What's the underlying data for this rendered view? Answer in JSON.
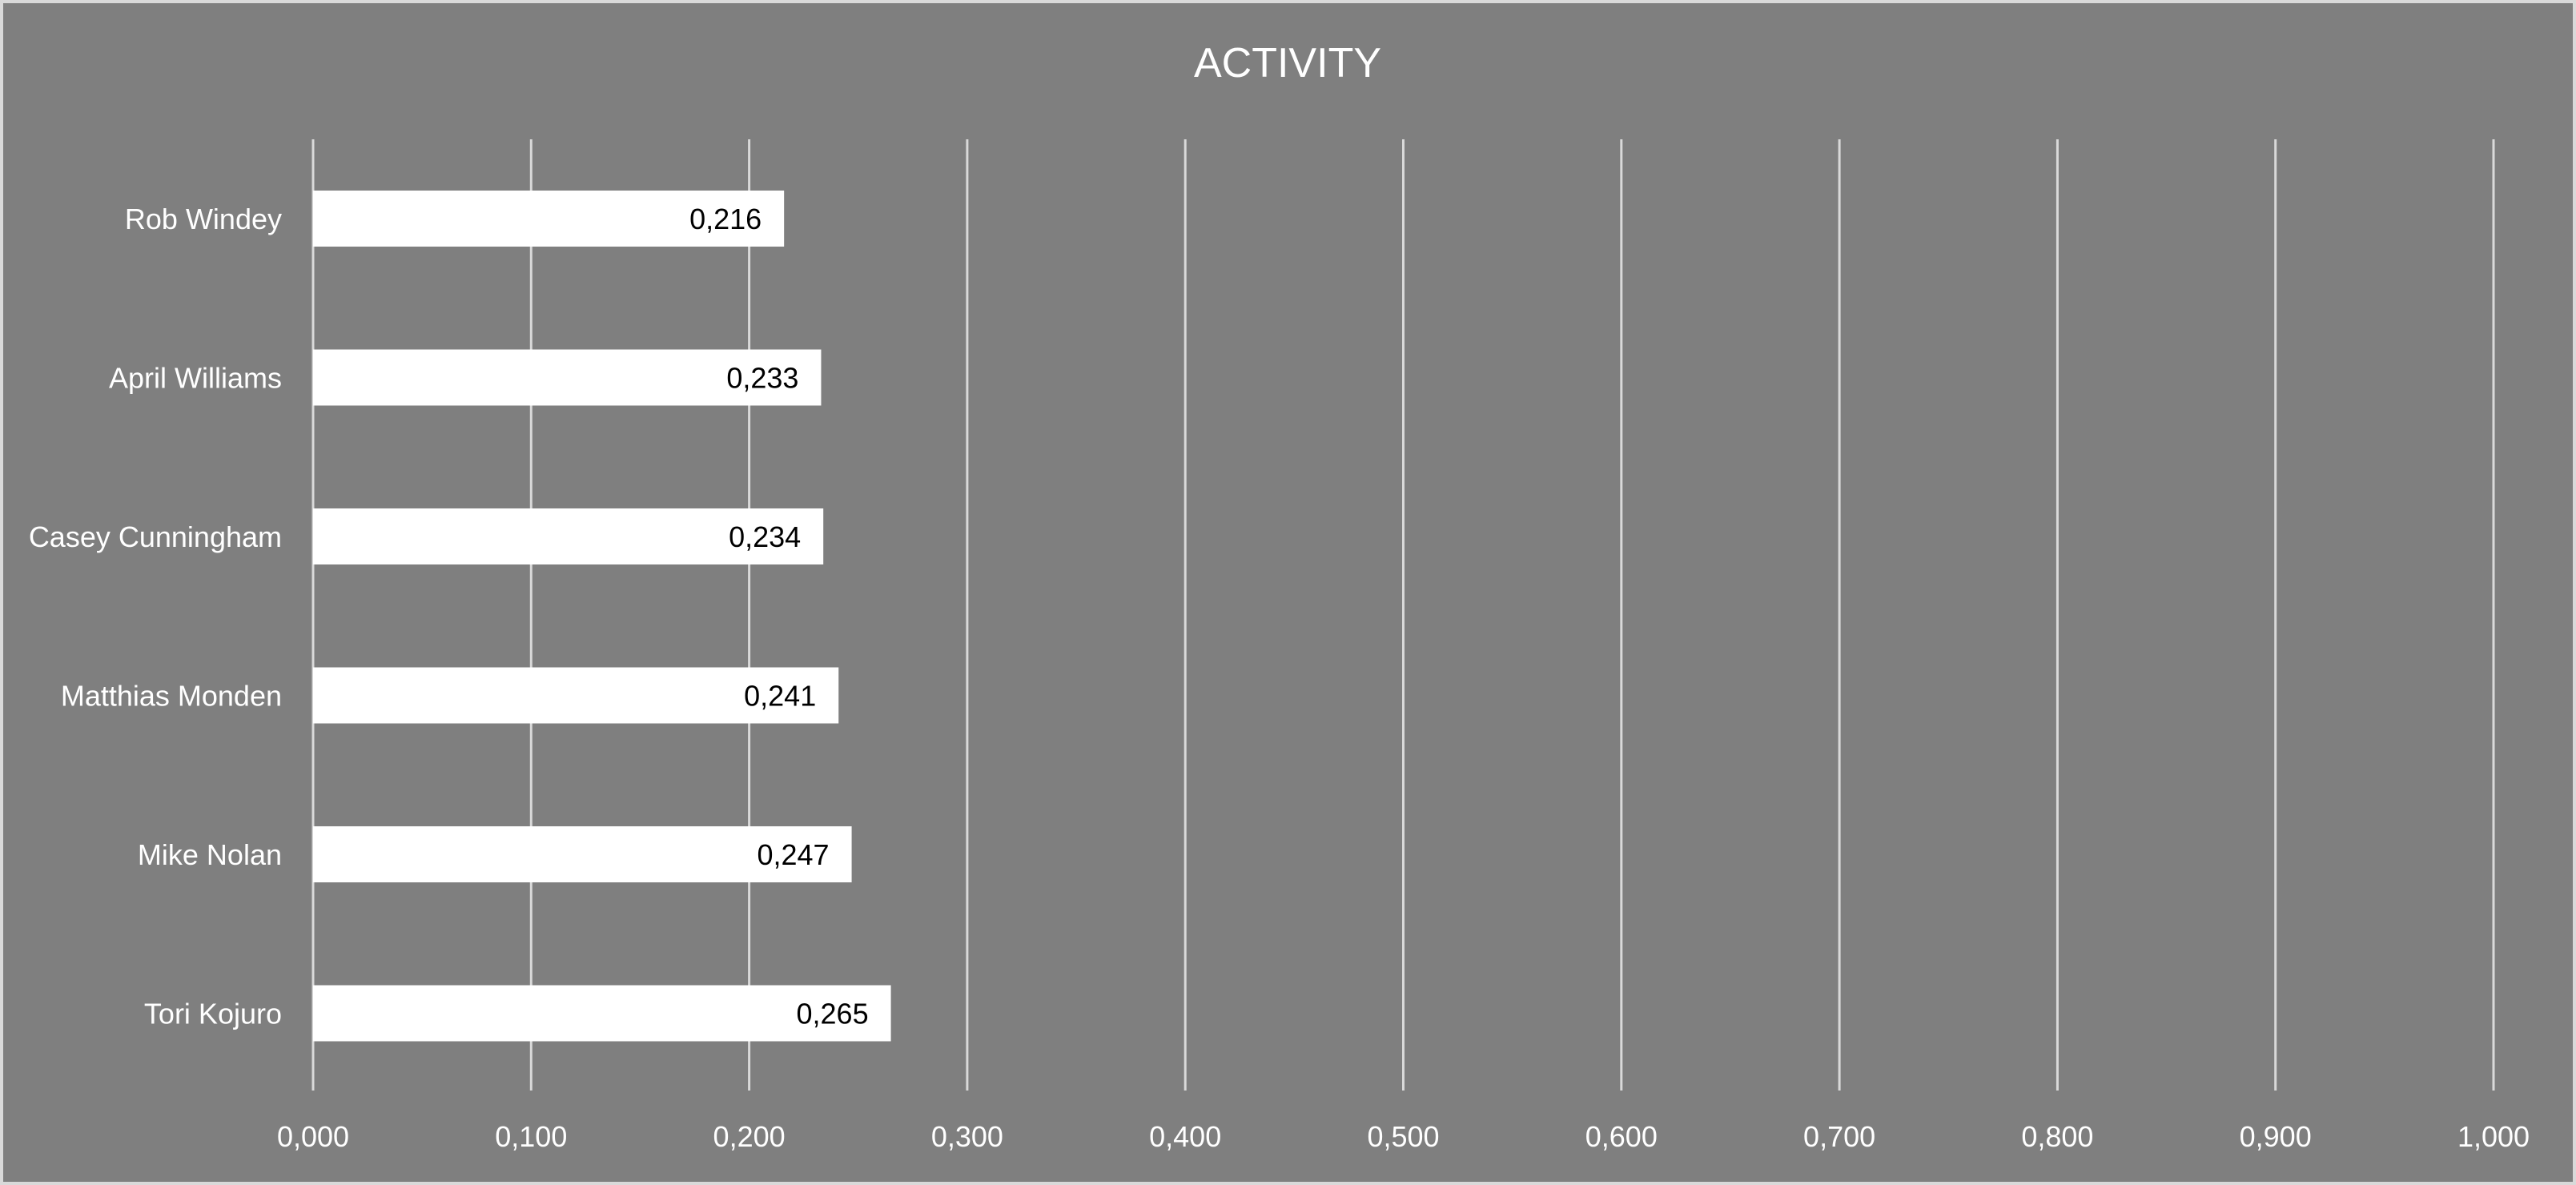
{
  "chart_data": {
    "type": "bar",
    "orientation": "horizontal",
    "title": "ACTIVITY",
    "categories": [
      "Rob Windey",
      "April Williams",
      "Casey Cunningham",
      "Matthias Monden",
      "Mike Nolan",
      "Tori Kojuro"
    ],
    "values": [
      0.216,
      0.233,
      0.234,
      0.241,
      0.247,
      0.265
    ],
    "data_labels": [
      "0,216",
      "0,233",
      "0,234",
      "0,241",
      "0,247",
      "0,265"
    ],
    "xlim": [
      0,
      1
    ],
    "x_ticks": [
      0,
      0.1,
      0.2,
      0.3,
      0.4,
      0.5,
      0.6,
      0.7,
      0.8,
      0.9,
      1.0
    ],
    "x_tick_labels": [
      "0,000",
      "0,100",
      "0,200",
      "0,300",
      "0,400",
      "0,500",
      "0,600",
      "0,700",
      "0,800",
      "0,900",
      "1,000"
    ],
    "xlabel": "",
    "ylabel": "",
    "grid": "vertical",
    "legend": "none",
    "colors": {
      "background": "#7f7f7f",
      "border": "#d9d9d9",
      "bar": "#ffffff",
      "gridline": "#d9d9d9",
      "text": "#ffffff",
      "data_label_text": "#000000"
    }
  }
}
